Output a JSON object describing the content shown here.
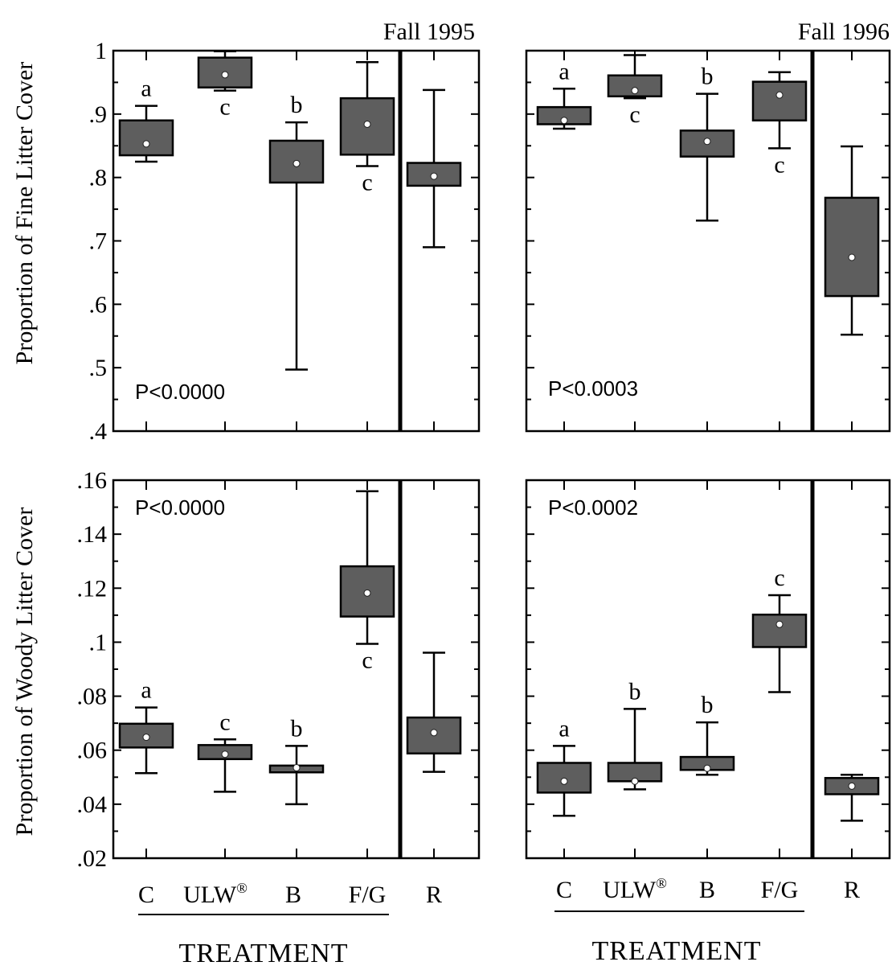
{
  "figure": {
    "ylabel_top": "Proportion of Fine Litter Cover",
    "ylabel_bottom": "Proportion of Woody Litter Cover",
    "xlabel": "TREATMENT",
    "categories": [
      "C",
      "ULW®",
      "B",
      "F/G",
      "R"
    ],
    "colors": {
      "box": "#5e5e5e",
      "median_marker": "#ffffff",
      "line": "#000000"
    }
  },
  "chart_data": [
    {
      "type": "box",
      "panel": "top-left",
      "title": "Fall 1995",
      "pvalue": "P<0.0000",
      "ylabel": "Proportion of Fine Litter Cover",
      "xlabel": "TREATMENT",
      "ylim": [
        0.4,
        1.0
      ],
      "yticks": [
        0.4,
        0.5,
        0.6,
        0.7,
        0.8,
        0.9,
        1.0
      ],
      "ytick_labels": [
        ".4",
        ".5",
        ".6",
        ".7",
        ".8",
        ".9",
        "1"
      ],
      "categories": [
        "C",
        "ULW®",
        "B",
        "F/G",
        "R"
      ],
      "boxes": [
        {
          "category": "C",
          "min": 0.825,
          "q1": 0.835,
          "median": 0.853,
          "q3": 0.89,
          "max": 0.913,
          "letter": "a",
          "letter_pos": "above"
        },
        {
          "category": "ULW®",
          "min": 0.937,
          "q1": 0.942,
          "median": 0.962,
          "q3": 0.989,
          "max": 0.999,
          "letter": "c",
          "letter_pos": "below"
        },
        {
          "category": "B",
          "min": 0.497,
          "q1": 0.792,
          "median": 0.822,
          "q3": 0.858,
          "max": 0.887,
          "letter": "b",
          "letter_pos": "above"
        },
        {
          "category": "F/G",
          "min": 0.818,
          "q1": 0.836,
          "median": 0.884,
          "q3": 0.925,
          "max": 0.982,
          "letter": "c",
          "letter_pos": "below"
        },
        {
          "category": "R",
          "min": 0.69,
          "q1": 0.787,
          "median": 0.802,
          "q3": 0.823,
          "max": 0.938,
          "letter": "",
          "letter_pos": "none"
        }
      ]
    },
    {
      "type": "box",
      "panel": "top-right",
      "title": "Fall 1996",
      "pvalue": "P<0.0003",
      "ylabel": "",
      "xlabel": "TREATMENT",
      "ylim": [
        0.4,
        1.0
      ],
      "yticks": [
        0.4,
        0.5,
        0.6,
        0.7,
        0.8,
        0.9,
        1.0
      ],
      "ytick_labels": [],
      "categories": [
        "C",
        "ULW®",
        "B",
        "F/G",
        "R"
      ],
      "boxes": [
        {
          "category": "C",
          "min": 0.877,
          "q1": 0.884,
          "median": 0.89,
          "q3": 0.911,
          "max": 0.94,
          "letter": "a",
          "letter_pos": "above"
        },
        {
          "category": "ULW®",
          "min": 0.925,
          "q1": 0.928,
          "median": 0.937,
          "q3": 0.961,
          "max": 0.993,
          "letter": "c",
          "letter_pos": "below"
        },
        {
          "category": "B",
          "min": 0.732,
          "q1": 0.833,
          "median": 0.857,
          "q3": 0.874,
          "max": 0.932,
          "letter": "b",
          "letter_pos": "above"
        },
        {
          "category": "F/G",
          "min": 0.846,
          "q1": 0.89,
          "median": 0.93,
          "q3": 0.951,
          "max": 0.966,
          "letter": "c",
          "letter_pos": "below"
        },
        {
          "category": "R",
          "min": 0.552,
          "q1": 0.613,
          "median": 0.674,
          "q3": 0.768,
          "max": 0.849,
          "letter": "",
          "letter_pos": "none"
        }
      ]
    },
    {
      "type": "box",
      "panel": "bottom-left",
      "title": "",
      "pvalue": "P<0.0000",
      "ylabel": "Proportion of Woody Litter Cover",
      "xlabel": "TREATMENT",
      "ylim": [
        0.02,
        0.16
      ],
      "yticks": [
        0.02,
        0.04,
        0.06,
        0.08,
        0.1,
        0.12,
        0.14,
        0.16
      ],
      "ytick_labels": [
        ".02",
        ".04",
        ".06",
        ".08",
        ".1",
        ".12",
        ".14",
        ".16"
      ],
      "categories": [
        "C",
        "ULW®",
        "B",
        "F/G",
        "R"
      ],
      "boxes": [
        {
          "category": "C",
          "min": 0.0515,
          "q1": 0.061,
          "median": 0.0648,
          "q3": 0.0698,
          "max": 0.0758,
          "letter": "a",
          "letter_pos": "above"
        },
        {
          "category": "ULW®",
          "min": 0.0446,
          "q1": 0.0567,
          "median": 0.0585,
          "q3": 0.0619,
          "max": 0.064,
          "letter": "c",
          "letter_pos": "above"
        },
        {
          "category": "B",
          "min": 0.04,
          "q1": 0.0518,
          "median": 0.0535,
          "q3": 0.0543,
          "max": 0.0616,
          "letter": "b",
          "letter_pos": "above"
        },
        {
          "category": "F/G",
          "min": 0.0994,
          "q1": 0.1095,
          "median": 0.1182,
          "q3": 0.1281,
          "max": 0.1559,
          "letter": "c",
          "letter_pos": "below"
        },
        {
          "category": "R",
          "min": 0.052,
          "q1": 0.0588,
          "median": 0.0665,
          "q3": 0.0721,
          "max": 0.0961,
          "letter": "",
          "letter_pos": "none"
        }
      ]
    },
    {
      "type": "box",
      "panel": "bottom-right",
      "title": "",
      "pvalue": "P<0.0002",
      "ylabel": "",
      "xlabel": "TREATMENT",
      "ylim": [
        0.02,
        0.16
      ],
      "yticks": [
        0.02,
        0.04,
        0.06,
        0.08,
        0.1,
        0.12,
        0.14,
        0.16
      ],
      "ytick_labels": [],
      "categories": [
        "C",
        "ULW®",
        "B",
        "F/G",
        "R"
      ],
      "boxes": [
        {
          "category": "C",
          "min": 0.0357,
          "q1": 0.0443,
          "median": 0.0485,
          "q3": 0.0553,
          "max": 0.0616,
          "letter": "a",
          "letter_pos": "above"
        },
        {
          "category": "ULW®",
          "min": 0.0455,
          "q1": 0.0485,
          "median": 0.0485,
          "q3": 0.0553,
          "max": 0.0753,
          "letter": "b",
          "letter_pos": "above"
        },
        {
          "category": "B",
          "min": 0.0509,
          "q1": 0.0527,
          "median": 0.0533,
          "q3": 0.0575,
          "max": 0.0703,
          "letter": "b",
          "letter_pos": "above"
        },
        {
          "category": "F/G",
          "min": 0.0815,
          "q1": 0.0982,
          "median": 0.1066,
          "q3": 0.1102,
          "max": 0.1174,
          "letter": "c",
          "letter_pos": "above"
        },
        {
          "category": "R",
          "min": 0.0339,
          "q1": 0.0437,
          "median": 0.0467,
          "q3": 0.0497,
          "max": 0.0509,
          "letter": "",
          "letter_pos": "none"
        }
      ]
    }
  ]
}
